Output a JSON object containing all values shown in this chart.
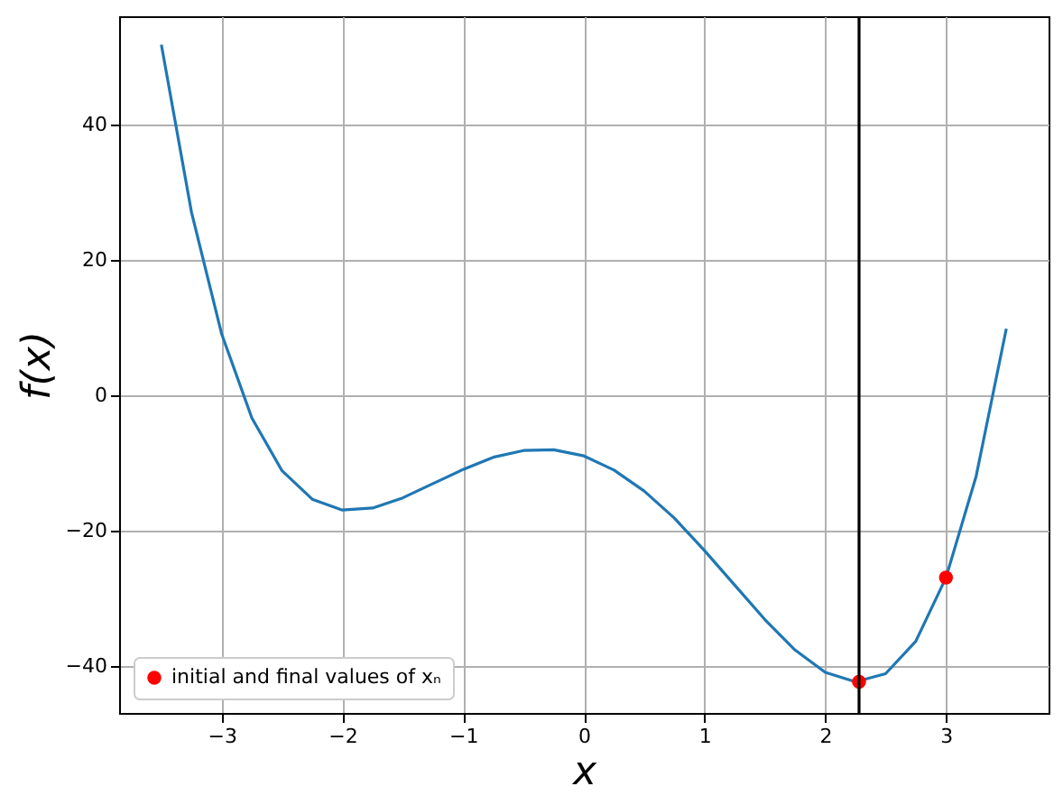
{
  "chart_data": {
    "type": "line",
    "xlabel": "x",
    "ylabel": "f(x)",
    "xlim": [
      -3.85,
      3.85
    ],
    "xticks": [
      -3,
      -2,
      -1,
      0,
      1,
      2,
      3
    ],
    "ylim": [
      -47,
      56
    ],
    "yticks": [
      -40,
      -20,
      0,
      20,
      40
    ],
    "grid": true,
    "legend": "bottom left",
    "series": [
      {
        "color": "#1f77b4",
        "x": [
          -3.5,
          -3.25,
          -3,
          -2.75,
          -2.5,
          -2.25,
          -2,
          -1.75,
          -1.5,
          -1.25,
          -1,
          -0.75,
          -0.5,
          -0.25,
          0,
          0.25,
          0.5,
          0.75,
          1,
          1.25,
          1.5,
          1.75,
          2,
          2.25,
          2.5,
          2.75,
          3,
          3.25,
          3.5
        ],
        "values": [
          51.8,
          27,
          9,
          -3.4,
          -11.2,
          -15.4,
          -17,
          -16.7,
          -15.2,
          -13.1,
          -11,
          -9.2,
          -8.2,
          -8.1,
          -9,
          -11.1,
          -14.2,
          -18.2,
          -23,
          -28.1,
          -33.2,
          -37.7,
          -41,
          -42.4,
          -41.2,
          -36.4,
          -27,
          -12,
          9.8
        ]
      },
      {
        "type": "scatter",
        "name": "initial and final values of xₙ",
        "color": "#ff0000",
        "marker": "circle",
        "x": [
          3,
          2.28
        ],
        "values": [
          -27,
          -42.4
        ]
      }
    ],
    "ref_lines": [
      {
        "axis": "x",
        "value": 2.28,
        "color": "#000000"
      }
    ]
  }
}
